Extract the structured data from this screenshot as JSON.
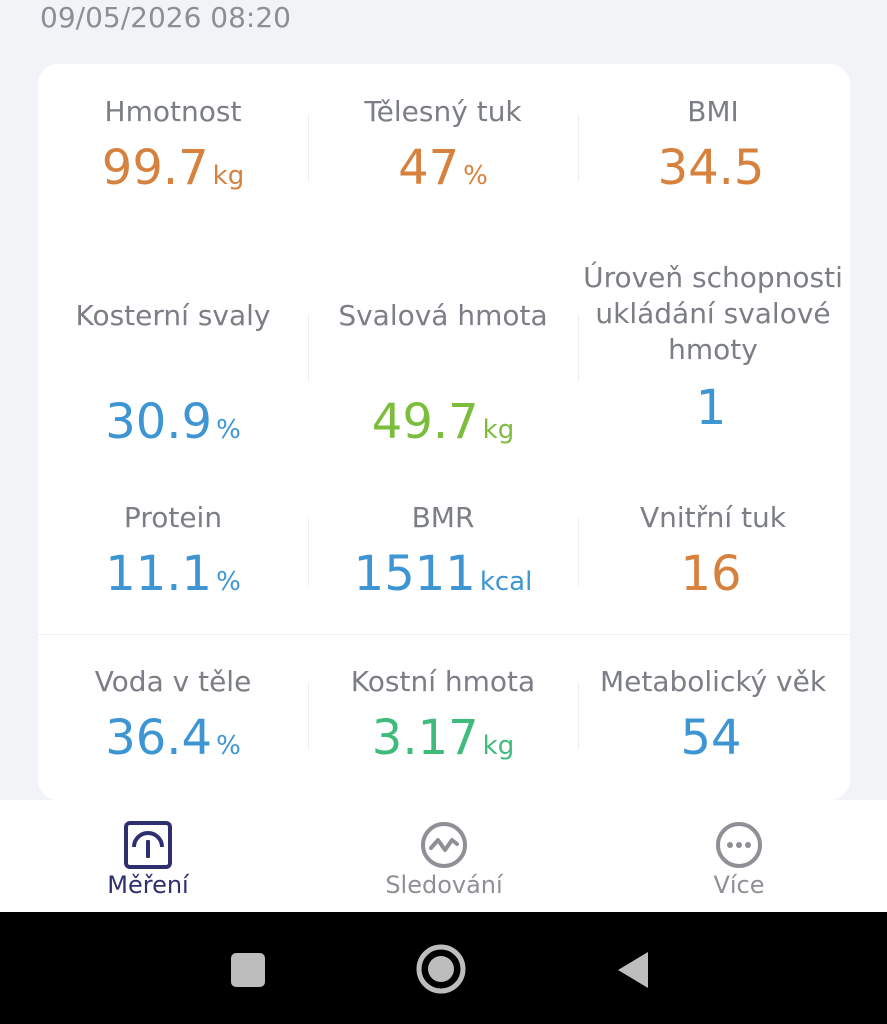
{
  "timestamp": "09/05/2026 08:20",
  "metrics": [
    {
      "label": "Hmotnost",
      "value": "99.7",
      "unit": "kg"
    },
    {
      "label": "Tělesný tuk",
      "value": "47",
      "unit": "%"
    },
    {
      "label": "BMI",
      "value": "34.5",
      "unit": ""
    },
    {
      "label": "Kosterní svaly",
      "value": "30.9",
      "unit": "%"
    },
    {
      "label": "Svalová hmota",
      "value": "49.7",
      "unit": "kg"
    },
    {
      "label": "Úroveň schopnosti ukládání svalové hmoty",
      "value": "1",
      "unit": ""
    },
    {
      "label": "Protein",
      "value": "11.1",
      "unit": "%"
    },
    {
      "label": "BMR",
      "value": "1511",
      "unit": "kcal"
    },
    {
      "label": "Vnitřní tuk",
      "value": "16",
      "unit": ""
    },
    {
      "label": "Voda v těle",
      "value": "36.4",
      "unit": "%"
    },
    {
      "label": "Kostní hmota",
      "value": "3.17",
      "unit": "kg"
    },
    {
      "label": "Metabolický věk",
      "value": "54",
      "unit": ""
    }
  ],
  "colors": {
    "orange": "#d6813e",
    "blue": "#3d95d4",
    "green": "#7dbd3d",
    "teal": "#3fbb7c",
    "active_tab": "#2e2f6e"
  },
  "tabs": [
    {
      "label": "Měření",
      "icon": "scale-gauge-icon",
      "active": true
    },
    {
      "label": "Sledování",
      "icon": "trend-chart-icon",
      "active": false
    },
    {
      "label": "Více",
      "icon": "more-dots-icon",
      "active": false
    }
  ],
  "system_nav": [
    "recents-square-icon",
    "home-circle-icon",
    "back-triangle-icon"
  ]
}
